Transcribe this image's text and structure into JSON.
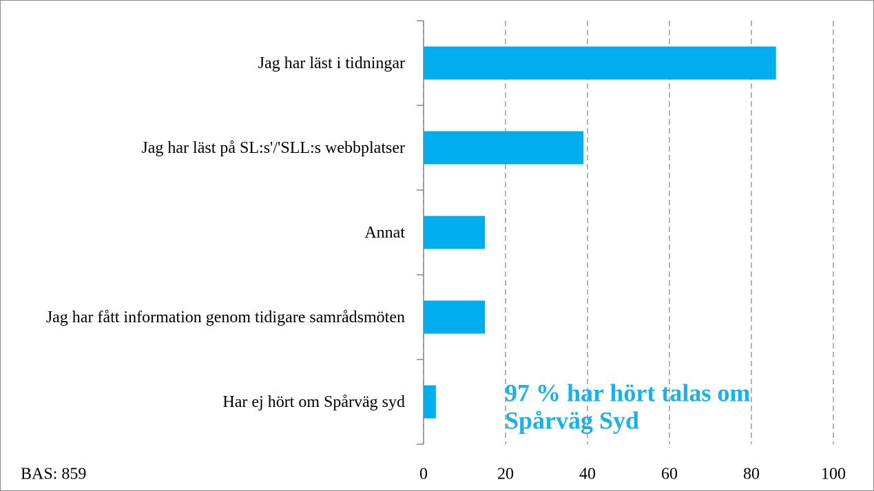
{
  "chart_data": {
    "type": "barh",
    "categories": [
      "Jag har läst i tidningar",
      "Jag har läst på SL:s'/'SLL:s webbplatser",
      "Annat",
      "Jag har fått information genom tidigare samrådsmöten",
      "Har ej hört om Spårväg syd"
    ],
    "values": [
      86,
      39,
      15,
      15,
      3
    ],
    "color": "#00aeef",
    "xlim": [
      0,
      100
    ],
    "xticks": [
      0,
      20,
      40,
      60,
      80,
      100
    ],
    "grid": true,
    "annotation": [
      "97 % har hört talas om",
      "Spårväg Syd"
    ],
    "note": "BAS: 859"
  }
}
